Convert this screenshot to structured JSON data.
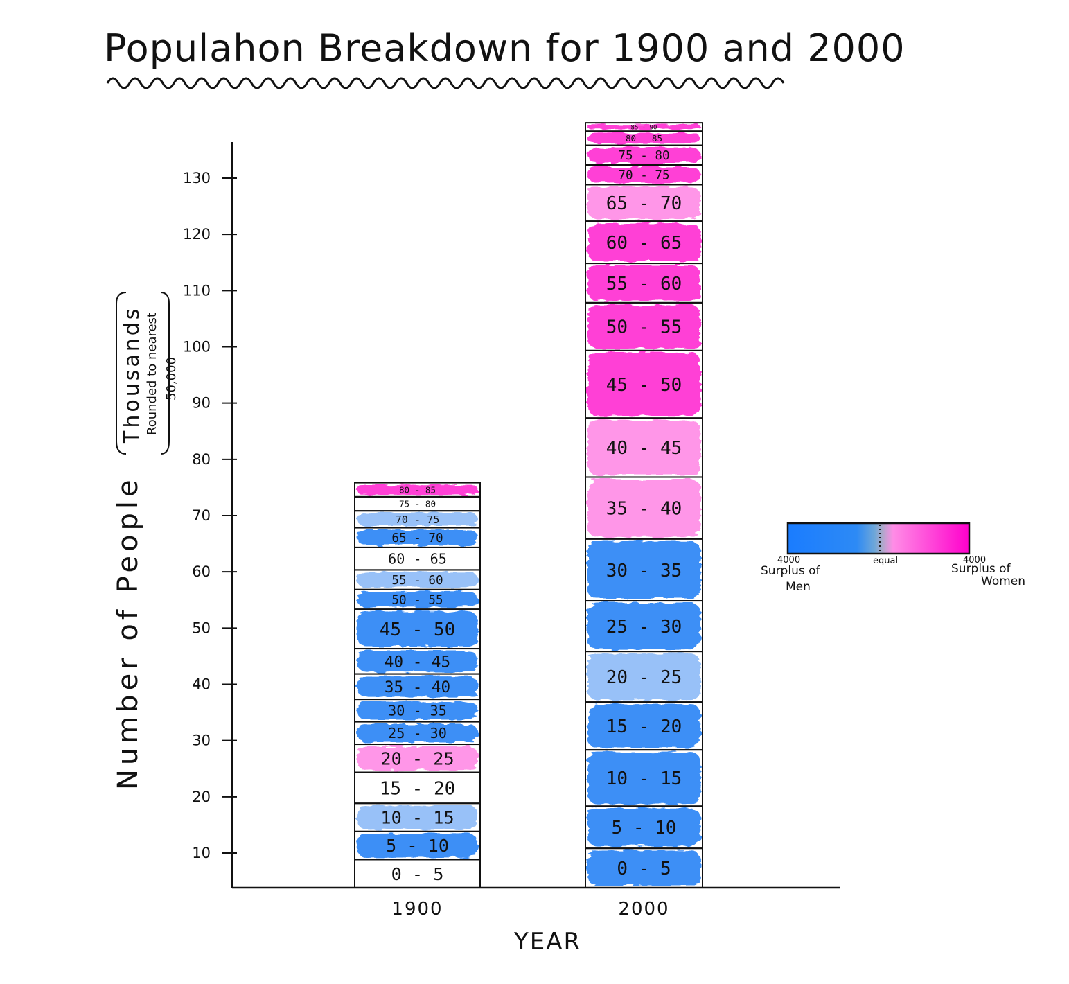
{
  "chart_data": {
    "type": "bar",
    "stacked": true,
    "title": "Populahon Breakdown for 1900 and 2000",
    "xlabel": "YEAR",
    "ylabel": "Number of People",
    "ylabel_unit": "Thousands",
    "ylabel_note": [
      "Rounded to nearest",
      "50,000"
    ],
    "ylim": [
      0,
      135
    ],
    "yticks": [
      10,
      20,
      30,
      40,
      50,
      60,
      70,
      80,
      90,
      100,
      110,
      120,
      130
    ],
    "categories": [
      "1900",
      "2000"
    ],
    "colors": {
      "men_strong": "#2e86f5",
      "men_light": "#8fbcf7",
      "women_strong": "#ff2fd2",
      "women_light": "#ff8de6",
      "neutral": "#ffffff"
    },
    "series": [
      {
        "year": "1900",
        "segments": [
          {
            "label": "0 - 5",
            "value": 5,
            "surplus": "equal"
          },
          {
            "label": "5 - 10",
            "value": 5,
            "surplus": "men"
          },
          {
            "label": "10 - 15",
            "value": 5,
            "surplus": "men-light"
          },
          {
            "label": "15 - 20",
            "value": 5.5,
            "surplus": "equal"
          },
          {
            "label": "20 - 25",
            "value": 5,
            "surplus": "women-light"
          },
          {
            "label": "25 - 30",
            "value": 4,
            "surplus": "men"
          },
          {
            "label": "30 - 35",
            "value": 4,
            "surplus": "men"
          },
          {
            "label": "35 - 40",
            "value": 4.5,
            "surplus": "men"
          },
          {
            "label": "40 - 45",
            "value": 4.5,
            "surplus": "men"
          },
          {
            "label": "45 - 50",
            "value": 7,
            "surplus": "men"
          },
          {
            "label": "50 - 55",
            "value": 3.5,
            "surplus": "men"
          },
          {
            "label": "55 - 60",
            "value": 3.5,
            "surplus": "men-light"
          },
          {
            "label": "60 - 65",
            "value": 4,
            "surplus": "equal"
          },
          {
            "label": "65 - 70",
            "value": 3.5,
            "surplus": "men"
          },
          {
            "label": "70 - 75",
            "value": 3,
            "surplus": "men-light"
          },
          {
            "label": "75 - 80",
            "value": 2.5,
            "surplus": "equal"
          },
          {
            "label": "80 - 85",
            "value": 2.5,
            "surplus": "women"
          }
        ]
      },
      {
        "year": "2000",
        "segments": [
          {
            "label": "0 - 5",
            "value": 7,
            "surplus": "men"
          },
          {
            "label": "5 - 10",
            "value": 7.5,
            "surplus": "men"
          },
          {
            "label": "10 - 15",
            "value": 10,
            "surplus": "men"
          },
          {
            "label": "15 - 20",
            "value": 8.5,
            "surplus": "men"
          },
          {
            "label": "20 - 25",
            "value": 9,
            "surplus": "men-light"
          },
          {
            "label": "25 - 30",
            "value": 9,
            "surplus": "men"
          },
          {
            "label": "30 - 35",
            "value": 11,
            "surplus": "men"
          },
          {
            "label": "35 - 40",
            "value": 11,
            "surplus": "women-light"
          },
          {
            "label": "40 - 45",
            "value": 10.5,
            "surplus": "women-light"
          },
          {
            "label": "45 - 50",
            "value": 12,
            "surplus": "women"
          },
          {
            "label": "50 - 55",
            "value": 8.5,
            "surplus": "women"
          },
          {
            "label": "55 - 60",
            "value": 7,
            "surplus": "women"
          },
          {
            "label": "60 - 65",
            "value": 7.5,
            "surplus": "women"
          },
          {
            "label": "65 - 70",
            "value": 6.5,
            "surplus": "women-light"
          },
          {
            "label": "70 - 75",
            "value": 3.5,
            "surplus": "women"
          },
          {
            "label": "75 - 80",
            "value": 3.5,
            "surplus": "women"
          },
          {
            "label": "80 - 85",
            "value": 2.5,
            "surplus": "women"
          },
          {
            "label": "85 - 90",
            "value": 1.5,
            "surplus": "women"
          }
        ]
      }
    ],
    "legend": {
      "placement": "right",
      "left_value": "4000",
      "left_label_1": "Surplus of",
      "left_label_2": "Men",
      "center_label": "equal",
      "right_value": "4000",
      "right_label_1": "Surplus of",
      "right_label_2": "Women"
    }
  }
}
